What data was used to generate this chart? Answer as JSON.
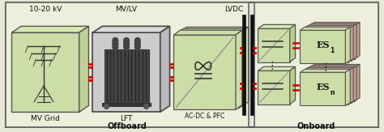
{
  "bg_outer": "#e8e8d8",
  "bg_offboard": "#eeeedc",
  "bg_onboard": "#eeeedc",
  "box_face": "#d8e8c0",
  "box_face_light": "#e0eac8",
  "box_edge": "#666666",
  "es_stack_color": "#c8a898",
  "red": "#cc0000",
  "black": "#111111",
  "gray_dark": "#333333",
  "gray_mid": "#888888",
  "gray_body": "#606060",
  "text_color": "#111111",
  "label_1020": "10-20 kV",
  "label_mvlv": "MV/LV",
  "label_lvdc": "LVDC",
  "label_mvgrid": "MV Grid",
  "label_lft": "LFT",
  "label_acdc": "AC-DC & PFC",
  "label_offboard": "Offboard",
  "label_onboard": "Onboard",
  "label_es1": "ES",
  "label_esn": "ES",
  "sub1": "1",
  "subn": "n",
  "fig_w": 4.74,
  "fig_h": 1.63,
  "dpi": 100
}
